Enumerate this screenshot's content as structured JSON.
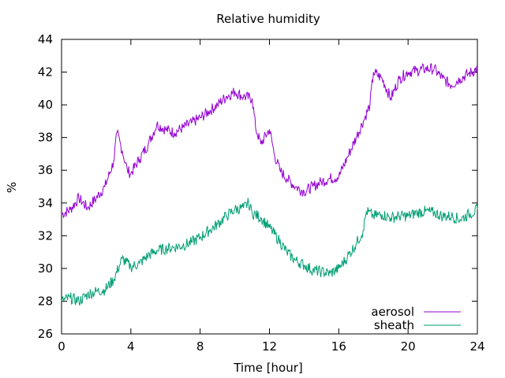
{
  "chart_data": {
    "type": "line",
    "title": "Relative humidity",
    "xlabel": "Time [hour]",
    "ylabel": "%",
    "xlim": [
      0,
      24
    ],
    "ylim": [
      26,
      44
    ],
    "xticks": [
      0,
      4,
      8,
      12,
      16,
      20,
      24
    ],
    "yticks": [
      26,
      28,
      30,
      32,
      34,
      36,
      38,
      40,
      42,
      44
    ],
    "grid": false,
    "legend_position": "bottom-right",
    "series": [
      {
        "name": "aerosol",
        "color": "#9400d3",
        "x": [
          0,
          0.5,
          1,
          1.5,
          2,
          2.5,
          3,
          3.2,
          3.5,
          3.8,
          4,
          4.5,
          5,
          5.5,
          6,
          6.5,
          7,
          7.5,
          8,
          8.5,
          9,
          9.5,
          10,
          10.5,
          11,
          11.2,
          11.5,
          12,
          12.3,
          12.6,
          13,
          13.5,
          14,
          14.5,
          15,
          15.5,
          16,
          16.5,
          17,
          17.5,
          17.8,
          18,
          18.5,
          19,
          19.5,
          20,
          20.5,
          21,
          21.5,
          22,
          22.5,
          23,
          23.5,
          24
        ],
        "y": [
          33.3,
          33.6,
          34.3,
          33.7,
          34.3,
          35.0,
          36.5,
          38.3,
          37.2,
          36.0,
          35.8,
          36.7,
          37.6,
          38.8,
          38.5,
          38.3,
          38.6,
          38.9,
          39.2,
          39.6,
          40.0,
          40.5,
          40.8,
          40.5,
          40.4,
          38.6,
          37.6,
          38.5,
          36.9,
          36.0,
          35.5,
          35.0,
          34.7,
          35.0,
          35.3,
          35.5,
          35.6,
          36.8,
          38.0,
          39.2,
          40.0,
          42.0,
          41.6,
          40.4,
          41.6,
          42.0,
          42.1,
          42.2,
          42.2,
          41.6,
          41.2,
          41.6,
          41.9,
          42.2
        ]
      },
      {
        "name": "sheath",
        "color": "#009e73",
        "x": [
          0,
          0.5,
          1,
          1.5,
          2,
          2.5,
          3,
          3.5,
          4,
          4.5,
          5,
          5.5,
          6,
          6.5,
          7,
          7.5,
          8,
          8.5,
          9,
          9.5,
          10,
          10.5,
          10.8,
          11,
          11.5,
          12,
          12.5,
          13,
          13.5,
          14,
          14.5,
          15,
          15.5,
          16,
          16.5,
          17,
          17.4,
          17.6,
          18,
          18.5,
          19,
          19.5,
          20,
          20.5,
          21,
          21.5,
          22,
          22.5,
          23,
          23.5,
          24
        ],
        "y": [
          28.0,
          28.2,
          28.0,
          28.4,
          28.6,
          28.7,
          29.3,
          30.6,
          30.1,
          30.3,
          30.8,
          31.1,
          31.2,
          31.3,
          31.4,
          31.6,
          31.9,
          32.3,
          32.7,
          33.2,
          33.6,
          33.7,
          34.0,
          33.4,
          33.1,
          32.5,
          31.8,
          31.0,
          30.5,
          30.2,
          29.9,
          29.8,
          29.7,
          30.0,
          30.7,
          31.5,
          32.3,
          33.5,
          33.2,
          33.3,
          33.1,
          33.2,
          33.2,
          33.4,
          33.5,
          33.4,
          33.2,
          33.2,
          33.0,
          33.3,
          33.6
        ]
      }
    ]
  }
}
